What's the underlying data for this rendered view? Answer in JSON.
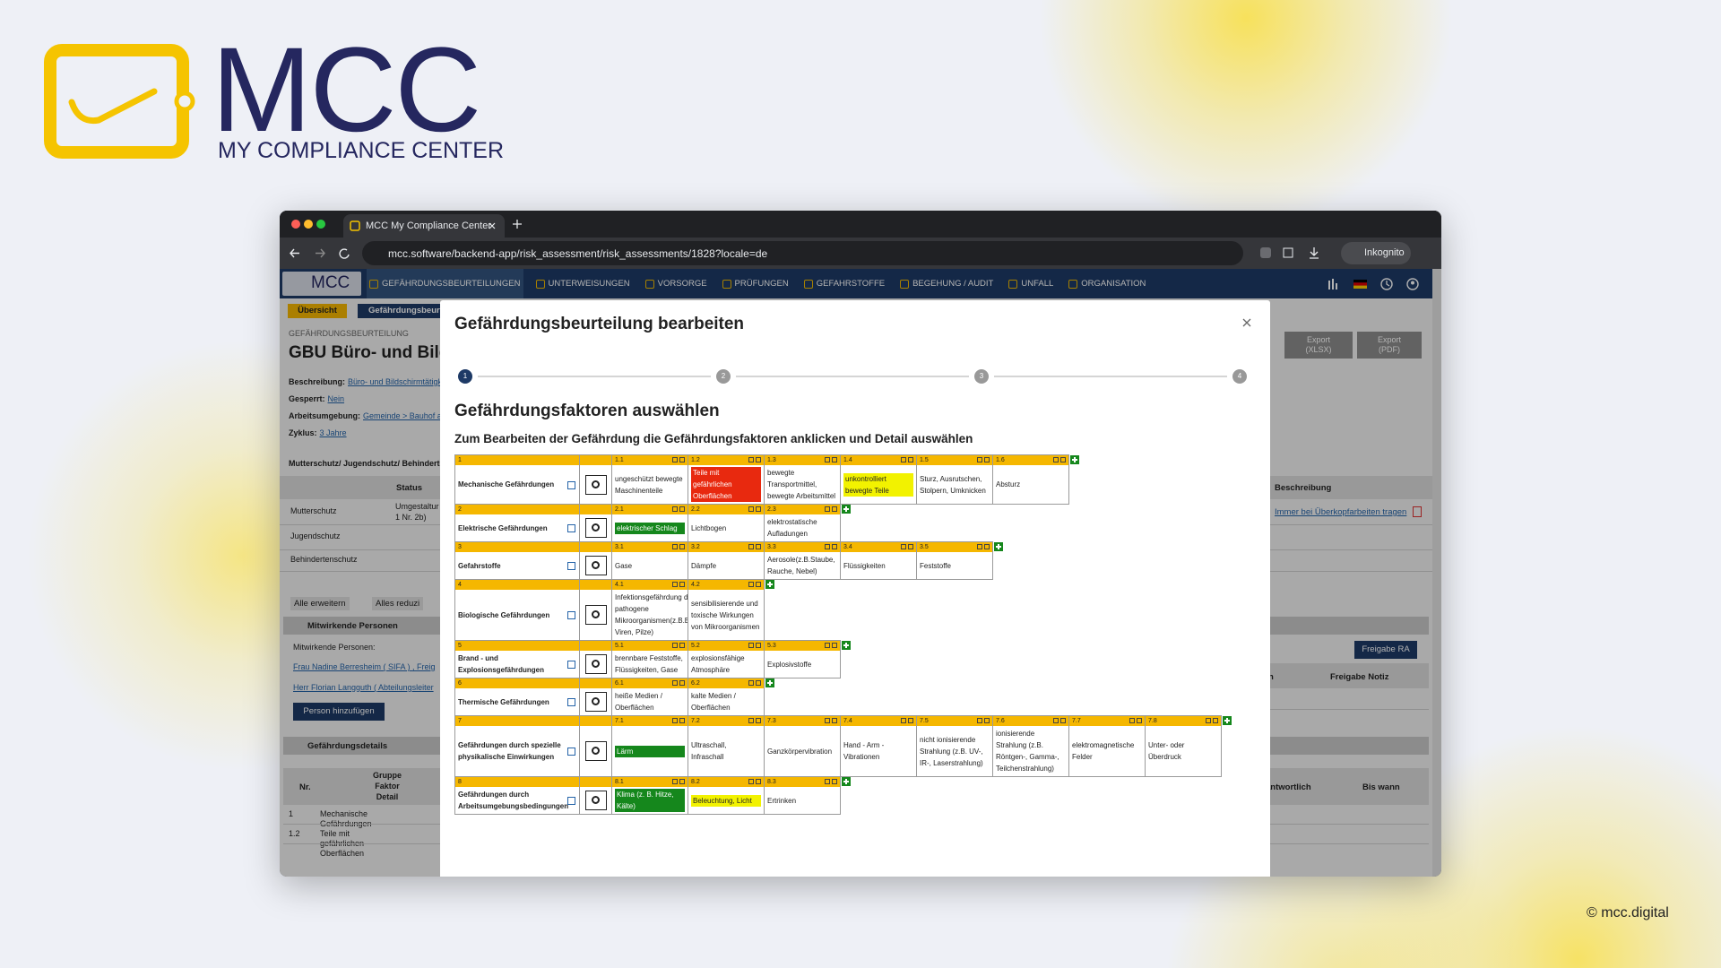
{
  "brand": {
    "name": "MCC",
    "tagline": "MY COMPLIANCE CENTER",
    "copyright": "© mcc.digital"
  },
  "browser": {
    "tab_title": "MCC My Compliance Center",
    "url": "mcc.software/backend-app/risk_assessment/risk_assessments/1828?locale=de",
    "profile": "Inkognito"
  },
  "app": {
    "logo": "MCC",
    "nav": [
      "GEFÄHRDUNGSBEURTEILUNGEN",
      "UNTERWEISUNGEN",
      "VORSORGE",
      "PRÜFUNGEN",
      "GEFAHRSTOFFE",
      "BEGEHUNG / AUDIT",
      "UNFALL",
      "ORGANISATION"
    ]
  },
  "page": {
    "tabs": [
      "Übersicht",
      "Gefährdungsbeurt"
    ],
    "breadcrumb": "GEFÄHRDUNGSBEURTEILUNG",
    "title": "GBU Büro- und Bilds",
    "fields": [
      {
        "label": "Beschreibung:",
        "value": "Büro- und Bildschirmtätigk"
      },
      {
        "label": "Gesperrt:",
        "value": "Nein"
      },
      {
        "label": "Arbeitsumgebung:",
        "value": "Gemeinde > Bauhof a"
      },
      {
        "label": "Zyklus:",
        "value": "3 Jahre"
      }
    ],
    "protection": {
      "title": "Mutterschutz/ Jugendschutz/ Behinderte",
      "header": "Status",
      "rows": [
        {
          "name": "Mutterschutz",
          "status": "Umgestaltur\n1 Nr. 2b)"
        },
        {
          "name": "Jugendschutz"
        },
        {
          "name": "Behindertenschutz"
        }
      ]
    },
    "expand": "Alle erweitern",
    "collapse": "Alles reduzi",
    "persons": {
      "title": "Mitwirkende Personen",
      "label": "Mitwirkende Personen:",
      "list": [
        "Frau Nadine Berresheim ( SIFA ) , Freig",
        "Herr Florian Langguth ( Abteilungsleiter"
      ],
      "add": "Person hinzufügen"
    },
    "details": {
      "title": "Gefährdungsdetails",
      "nr": "Nr.",
      "group": "Gruppe\nFaktor\nDetail",
      "rows": [
        {
          "nr": "1",
          "text": "Mechanische Gefährdungen"
        },
        {
          "nr": "1.2",
          "text": "Teile mit gefährlichen\nOberflächen"
        }
      ]
    },
    "right": {
      "exports": [
        "Export\n(XLSX)",
        "Export\n(PDF)"
      ],
      "description_header": "Beschreibung",
      "description": "Immer bei Überkopfarbeiten tragen",
      "release_button": "Freigabe RA",
      "release_headers": [
        "n",
        "Freigabe Notiz"
      ],
      "detail_headers": [
        "antwortlich",
        "Bis wann"
      ]
    }
  },
  "modal": {
    "title": "Gefährdungsbeurteilung bearbeiten",
    "steps": [
      "1",
      "2",
      "3",
      "4"
    ],
    "heading": "Gefährdungsfaktoren auswählen",
    "instruction": "Zum Bearbeiten der Gefährdung die Gefährdungsfaktoren anklicken und Detail auswählen",
    "groups": [
      {
        "number": "1",
        "name": "Mechanische Gefährdungen",
        "items": [
          {
            "number": "1.1",
            "label": "ungeschützt bewegte Maschinenteile"
          },
          {
            "number": "1.2",
            "label": "Teile mit gefährlichen Oberflächen",
            "color": "#e8290f"
          },
          {
            "number": "1.3",
            "label": "bewegte Transportmittel, bewegte Arbeitsmittel"
          },
          {
            "number": "1.4",
            "label": "unkontrolliert bewegte Teile",
            "color": "#f2f200"
          },
          {
            "number": "1.5",
            "label": "Sturz, Ausrutschen, Stolpern, Umknicken"
          },
          {
            "number": "1.6",
            "label": "Absturz"
          }
        ]
      },
      {
        "number": "2",
        "name": "Elektrische Gefährdungen",
        "items": [
          {
            "number": "2.1",
            "label": "elektrischer Schlag",
            "color": "#15871c"
          },
          {
            "number": "2.2",
            "label": "Lichtbogen"
          },
          {
            "number": "2.3",
            "label": "elektrostatische Aufladungen"
          }
        ]
      },
      {
        "number": "3",
        "name": "Gefahrstoffe",
        "items": [
          {
            "number": "3.1",
            "label": "Gase"
          },
          {
            "number": "3.2",
            "label": "Dämpfe"
          },
          {
            "number": "3.3",
            "label": "Aerosole(z.B.Staube, Rauche, Nebel)"
          },
          {
            "number": "3.4",
            "label": "Flüssigkeiten"
          },
          {
            "number": "3.5",
            "label": "Feststoffe"
          }
        ]
      },
      {
        "number": "4",
        "name": "Biologische Gefährdungen",
        "items": [
          {
            "number": "4.1",
            "label": "Infektionsgefährdung durch pathogene Mikroorganismen(z.B.Bakterien, Viren, Pilze)"
          },
          {
            "number": "4.2",
            "label": "sensibilisierende und toxische Wirkungen von Mikroorganismen"
          }
        ]
      },
      {
        "number": "5",
        "name": "Brand - und Explosionsgefährdungen",
        "items": [
          {
            "number": "5.1",
            "label": "brennbare Feststoffe, Flüssigkeiten, Gase"
          },
          {
            "number": "5.2",
            "label": "explosionsfähige Atmosphäre"
          },
          {
            "number": "5.3",
            "label": "Explosivstoffe"
          }
        ]
      },
      {
        "number": "6",
        "name": "Thermische Gefährdungen",
        "items": [
          {
            "number": "6.1",
            "label": "heiße Medien / Oberflächen"
          },
          {
            "number": "6.2",
            "label": "kalte Medien / Oberflächen"
          }
        ]
      },
      {
        "number": "7",
        "name": "Gefährdungen durch spezielle physikalische Einwirkungen",
        "items": [
          {
            "number": "7.1",
            "label": "Lärm",
            "color": "#15871c"
          },
          {
            "number": "7.2",
            "label": "Ultraschall, Infraschall"
          },
          {
            "number": "7.3",
            "label": "Ganzkörpervibration"
          },
          {
            "number": "7.4",
            "label": "Hand - Arm - Vibrationen"
          },
          {
            "number": "7.5",
            "label": "nicht ionisierende Strahlung (z.B. UV-, IR-, Laserstrahlung)"
          },
          {
            "number": "7.6",
            "label": "ionisierende Strahlung (z.B. Röntgen-, Gamma-, Teilchenstrahlung)"
          },
          {
            "number": "7.7",
            "label": "elektromagnetische Felder"
          },
          {
            "number": "7.8",
            "label": "Unter- oder Überdruck"
          }
        ]
      },
      {
        "number": "8",
        "name": "Gefährdungen durch Arbeitsumgebungsbedingungen",
        "items": [
          {
            "number": "8.1",
            "label": "Klima (z. B. Hitze, Kälte)",
            "color": "#15871c"
          },
          {
            "number": "8.2",
            "label": "Beleuchtung, Licht",
            "color": "#f2f200"
          },
          {
            "number": "8.3",
            "label": "Ertrinken"
          }
        ]
      }
    ]
  }
}
